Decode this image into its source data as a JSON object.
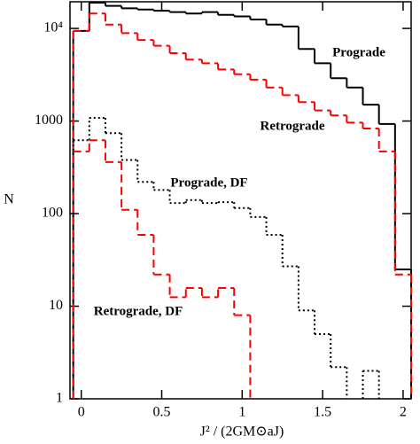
{
  "chart_data": {
    "type": "histogram",
    "xlabel": "J² / (2GM⊙aJ)",
    "ylabel": "N",
    "bins": [
      -0.05,
      0.05,
      0.15,
      0.25,
      0.35,
      0.45,
      0.55,
      0.65,
      0.75,
      0.85,
      0.95,
      1.05,
      1.15,
      1.25,
      1.35,
      1.45,
      1.55,
      1.65,
      1.75,
      1.85,
      1.95,
      2.05
    ],
    "series": [
      {
        "name": "Prograde",
        "color": "#000000",
        "style": "solid",
        "values": [
          9400,
          19000,
          17500,
          16500,
          16000,
          15500,
          15000,
          14500,
          15000,
          14000,
          13500,
          12500,
          11000,
          10500,
          6000,
          4200,
          2900,
          2300,
          1500,
          930,
          25
        ]
      },
      {
        "name": "Retrograde",
        "color": "#ff0000",
        "style": "dashed",
        "values": [
          9400,
          14500,
          11000,
          8900,
          7500,
          6500,
          5400,
          4600,
          4200,
          3600,
          3200,
          2800,
          2300,
          1900,
          1600,
          1300,
          1150,
          960,
          830,
          470,
          22
        ]
      },
      {
        "name": "Prograde, DF",
        "color": "#000000",
        "style": "dotted",
        "values": [
          620,
          1080,
          740,
          380,
          220,
          180,
          130,
          140,
          130,
          133,
          115,
          92,
          59,
          27,
          9,
          5,
          2.2,
          null,
          2,
          null,
          null
        ]
      },
      {
        "name": "Retrograde, DF",
        "color": "#ff0000",
        "style": "dashed",
        "values": [
          470,
          620,
          360,
          110,
          59,
          22,
          12.5,
          15.7,
          12.5,
          15.7,
          8,
          null,
          null,
          null,
          null,
          null,
          null,
          null,
          null,
          null,
          null
        ]
      }
    ],
    "xlim": [
      -0.07,
      2.05
    ],
    "ylim": [
      1,
      19400
    ],
    "log_y": true,
    "xticks": [
      0,
      0.5,
      1,
      1.5,
      2
    ],
    "yticks": [
      1,
      10,
      100,
      1000,
      {
        "value": 10000,
        "label": "10⁴"
      }
    ]
  }
}
